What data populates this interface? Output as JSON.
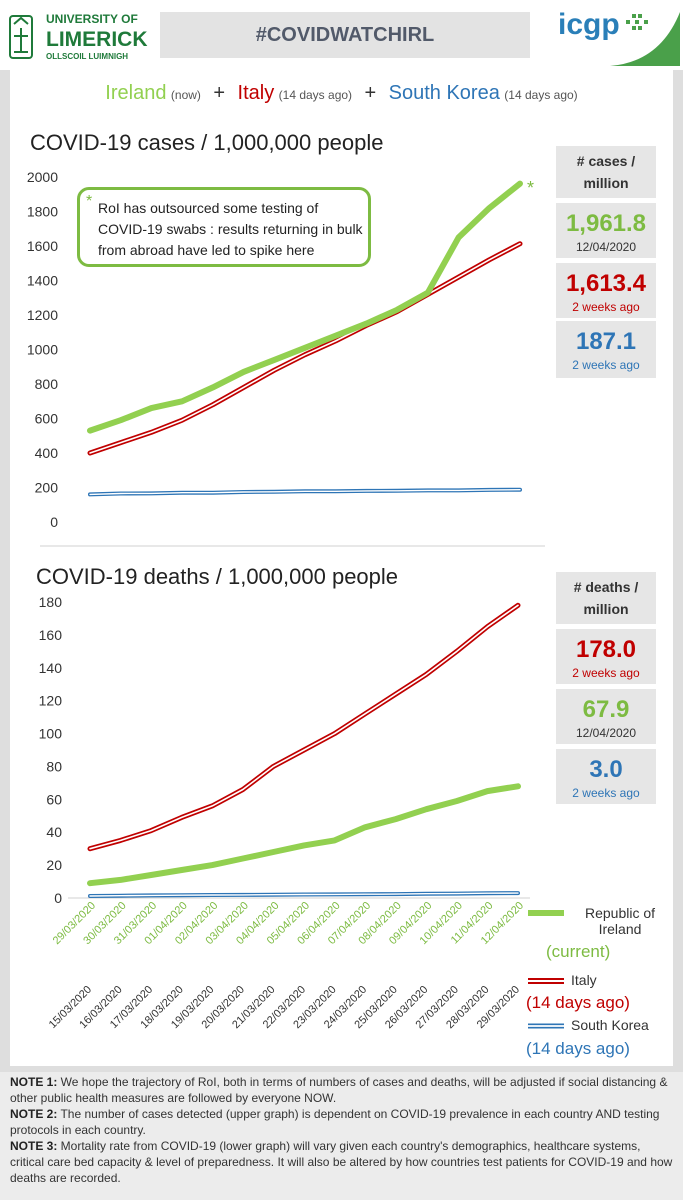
{
  "header": {
    "ul_line1": "UNIVERSITY OF",
    "ul_line2": "LIMERICK",
    "ul_line3": "OLLSCOIL LUIMNIGH",
    "hashtag": "#COVIDWATCHIRL",
    "icgp": "icgp"
  },
  "countries": {
    "ireland": "Ireland",
    "ireland_note": "(now)",
    "italy": "Italy",
    "italy_note": "(14 days ago)",
    "korea": "South Korea",
    "korea_note": "(14 days ago)",
    "plus": "+"
  },
  "colors": {
    "ireland": "#92d050",
    "italy": "#c00000",
    "korea": "#2e75b6"
  },
  "cases_note": {
    "star": "*",
    "text": "RoI has outsourced some testing of COVID-19 swabs : results returning in bulk from abroad have led to spike here",
    "end_star": "*"
  },
  "cases_stats": {
    "head": "# cases / million",
    "ireland_val": "1,961.8",
    "ireland_sub": "12/04/2020",
    "italy_val": "1,613.4",
    "italy_sub": "2 weeks ago",
    "korea_val": "187.1",
    "korea_sub": "2 weeks ago"
  },
  "deaths_stats": {
    "head": "# deaths / million",
    "italy_val": "178.0",
    "italy_sub": "2 weeks ago",
    "ireland_val": "67.9",
    "ireland_sub": "12/04/2020",
    "korea_val": "3.0",
    "korea_sub": "2 weeks ago"
  },
  "legend": {
    "ireland": "Republic of Ireland",
    "ireland_tag": "(current)",
    "italy": "Italy",
    "italy_tag": "(14 days ago)",
    "korea": "South Korea",
    "korea_tag": "(14 days ago)"
  },
  "chart_data": [
    {
      "type": "line",
      "title": "COVID-19 cases / 1,000,000 people",
      "ylim": [
        0,
        2000
      ],
      "yticks": [
        0,
        200,
        400,
        600,
        800,
        1000,
        1200,
        1400,
        1600,
        1800,
        2000
      ],
      "series": [
        {
          "name": "Ireland",
          "values": [
            530,
            590,
            660,
            700,
            780,
            870,
            940,
            1010,
            1080,
            1150,
            1230,
            1330,
            1650,
            1820,
            1961.8
          ]
        },
        {
          "name": "Italy",
          "values": [
            400,
            460,
            520,
            590,
            680,
            780,
            880,
            970,
            1050,
            1140,
            1220,
            1320,
            1420,
            1520,
            1613.4
          ]
        },
        {
          "name": "South Korea",
          "values": [
            160,
            165,
            166,
            170,
            170,
            174,
            175,
            178,
            178,
            180,
            181,
            183,
            183,
            186,
            187.1
          ]
        }
      ]
    },
    {
      "type": "line",
      "title": "COVID-19 deaths / 1,000,000 people",
      "ylim": [
        0,
        180
      ],
      "yticks": [
        0,
        20,
        40,
        60,
        80,
        100,
        120,
        140,
        160,
        180
      ],
      "x_ireland": [
        "29/03/2020",
        "30/03/2020",
        "31/03/2020",
        "01/04/2020",
        "02/04/2020",
        "03/04/2020",
        "04/04/2020",
        "05/04/2020",
        "06/04/2020",
        "07/04/2020",
        "08/04/2020",
        "09/04/2020",
        "10/04/2020",
        "11/04/2020",
        "12/04/2020"
      ],
      "x_italy_korea": [
        "15/03/2020",
        "16/03/2020",
        "17/03/2020",
        "18/03/2020",
        "19/03/2020",
        "20/03/2020",
        "21/03/2020",
        "22/03/2020",
        "23/03/2020",
        "24/03/2020",
        "25/03/2020",
        "26/03/2020",
        "27/03/2020",
        "28/03/2020",
        "29/03/2020"
      ],
      "series": [
        {
          "name": "Ireland",
          "values": [
            9,
            11,
            14,
            17,
            20,
            24,
            28,
            32,
            35,
            43,
            48,
            54,
            59,
            65,
            67.9
          ]
        },
        {
          "name": "Italy",
          "values": [
            30,
            35,
            41,
            49,
            56,
            66,
            80,
            90,
            100,
            112,
            124,
            136,
            150,
            165,
            178
          ]
        },
        {
          "name": "South Korea",
          "values": [
            1.2,
            1.4,
            1.6,
            1.7,
            1.8,
            1.9,
            2.0,
            2.1,
            2.2,
            2.3,
            2.4,
            2.6,
            2.7,
            2.9,
            3.0
          ]
        }
      ]
    }
  ],
  "notes": [
    {
      "label": "NOTE 1:",
      "text": " We hope the trajectory of RoI, both in terms of numbers of cases and deaths, will be adjusted if social distancing & other public health measures are followed by everyone NOW."
    },
    {
      "label": "NOTE 2:",
      "text": " The number of cases detected (upper graph) is dependent on COVID-19 prevalence in each country AND testing protocols in each country."
    },
    {
      "label": "NOTE 3:",
      "text": " Mortality rate from COVID-19 (lower graph) will vary given each country's demographics, healthcare systems, critical care bed capacity & level of preparedness. It will also be altered by how countries test patients for COVID-19 and how deaths are recorded."
    }
  ]
}
